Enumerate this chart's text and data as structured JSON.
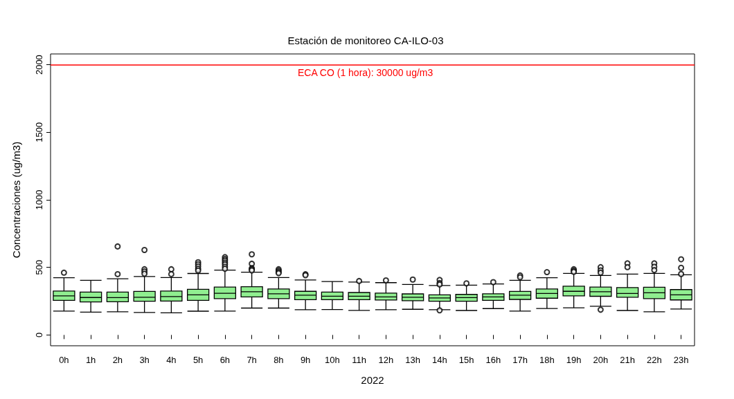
{
  "chart_data": {
    "type": "box",
    "title": "Estación de monitoreo CA-ILO-03",
    "xlabel": "2022",
    "ylabel": "Concentraciones (ug/m3)",
    "color": "#90ee90",
    "categories": [
      "0h",
      "1h",
      "2h",
      "3h",
      "4h",
      "5h",
      "6h",
      "7h",
      "8h",
      "9h",
      "10h",
      "11h",
      "12h",
      "13h",
      "14h",
      "15h",
      "16h",
      "17h",
      "18h",
      "19h",
      "20h",
      "21h",
      "22h",
      "23h"
    ],
    "boxes": [
      {
        "low": 177,
        "q1": 256,
        "median": 289,
        "q3": 325,
        "high": 424,
        "outliers": [
          461
        ]
      },
      {
        "low": 169,
        "q1": 244,
        "median": 277,
        "q3": 317,
        "high": 404
      },
      {
        "low": 171,
        "q1": 246,
        "median": 276,
        "q3": 317,
        "high": 416,
        "outliers": [
          655,
          450
        ]
      },
      {
        "low": 166,
        "q1": 249,
        "median": 279,
        "q3": 322,
        "high": 432,
        "outliers": [
          629,
          486,
          470,
          453
        ]
      },
      {
        "low": 164,
        "q1": 251,
        "median": 284,
        "q3": 325,
        "high": 425,
        "outliers": [
          486,
          450
        ]
      },
      {
        "low": 176,
        "q1": 256,
        "median": 297,
        "q3": 338,
        "high": 455,
        "outliers": [
          538,
          523,
          507,
          490,
          477
        ]
      },
      {
        "low": 177,
        "q1": 269,
        "median": 308,
        "q3": 354,
        "high": 480,
        "outliers": [
          576,
          562,
          550,
          535,
          522,
          505,
          490
        ]
      },
      {
        "low": 199,
        "q1": 282,
        "median": 320,
        "q3": 357,
        "high": 464,
        "outliers": [
          597,
          527,
          494,
          486,
          478
        ]
      },
      {
        "low": 199,
        "q1": 269,
        "median": 305,
        "q3": 340,
        "high": 425,
        "outliers": [
          486,
          475,
          465,
          457
        ]
      },
      {
        "low": 187,
        "q1": 261,
        "median": 294,
        "q3": 323,
        "high": 407,
        "outliers": [
          449,
          442
        ]
      },
      {
        "low": 188,
        "q1": 261,
        "median": 287,
        "q3": 317,
        "high": 395
      },
      {
        "low": 182,
        "q1": 261,
        "median": 287,
        "q3": 314,
        "high": 392,
        "outliers": [
          399
        ]
      },
      {
        "low": 187,
        "q1": 258,
        "median": 282,
        "q3": 310,
        "high": 387,
        "outliers": [
          404
        ]
      },
      {
        "low": 190,
        "q1": 253,
        "median": 279,
        "q3": 304,
        "high": 374,
        "outliers": [
          410
        ]
      },
      {
        "low": 187,
        "q1": 249,
        "median": 274,
        "q3": 297,
        "high": 366,
        "outliers": [
          407,
          384,
          374,
          182
        ]
      },
      {
        "low": 181,
        "q1": 249,
        "median": 276,
        "q3": 300,
        "high": 368,
        "outliers": [
          382
        ]
      },
      {
        "low": 195,
        "q1": 256,
        "median": 281,
        "q3": 305,
        "high": 377,
        "outliers": [
          391
        ]
      },
      {
        "low": 177,
        "q1": 263,
        "median": 294,
        "q3": 322,
        "high": 404,
        "outliers": [
          440,
          427
        ]
      },
      {
        "low": 196,
        "q1": 272,
        "median": 307,
        "q3": 340,
        "high": 424,
        "outliers": [
          465
        ]
      },
      {
        "low": 201,
        "q1": 289,
        "median": 323,
        "q3": 361,
        "high": 456,
        "outliers": [
          486,
          475,
          467
        ]
      },
      {
        "low": 212,
        "q1": 286,
        "median": 320,
        "q3": 354,
        "high": 440,
        "outliers": [
          502,
          478,
          461,
          187
        ]
      },
      {
        "low": 181,
        "q1": 279,
        "median": 307,
        "q3": 351,
        "high": 450,
        "outliers": [
          530,
          502
        ]
      },
      {
        "low": 171,
        "q1": 269,
        "median": 312,
        "q3": 353,
        "high": 456,
        "outliers": [
          530,
          505,
          480
        ]
      },
      {
        "low": 192,
        "q1": 259,
        "median": 297,
        "q3": 336,
        "high": 445,
        "outliers": [
          560,
          497,
          451
        ]
      }
    ],
    "ylim": [
      -80,
      2080
    ],
    "yticks": [
      0,
      500,
      1000,
      1500,
      2000
    ],
    "ref_lines": [
      {
        "axis": "y",
        "value": 2000,
        "color": "#ff0000"
      }
    ],
    "annotations": [
      "ECA CO (1 hora): 30000 ug/m3"
    ]
  }
}
